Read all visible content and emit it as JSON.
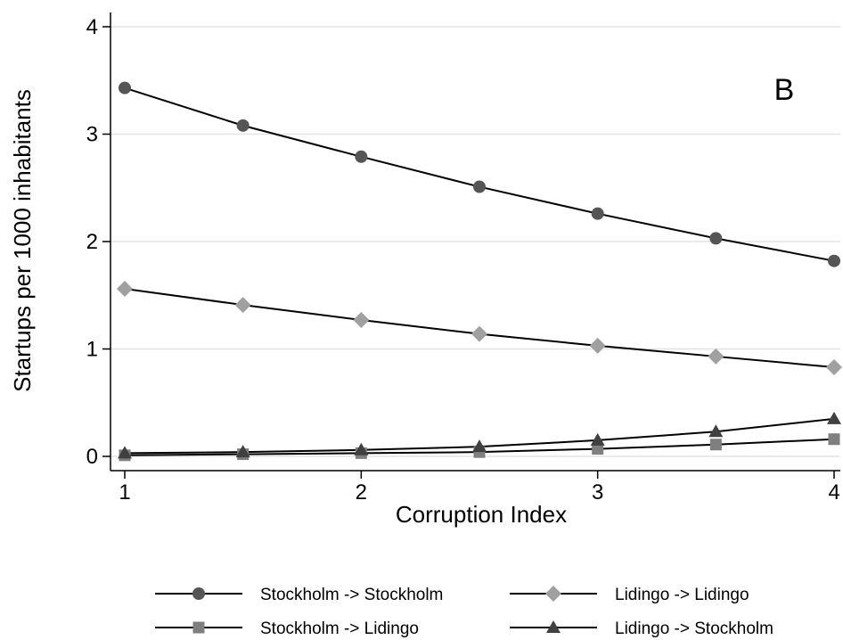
{
  "chart_data": {
    "type": "line",
    "annotation": "B",
    "xlabel": "Corruption Index",
    "ylabel": "Startups per 1000 inhabitants",
    "xlim": [
      1,
      4
    ],
    "ylim": [
      0,
      4
    ],
    "xticks": [
      "1",
      "2",
      "3",
      "4"
    ],
    "yticks": [
      "0",
      "1",
      "2",
      "3",
      "4"
    ],
    "grid": "horizontal",
    "legend_position": "bottom",
    "x": [
      1,
      1.5,
      2,
      2.5,
      3,
      3.5,
      4
    ],
    "series": [
      {
        "name": "Stockholm -> Stockholm",
        "marker": "circle",
        "color": "#555555",
        "values": [
          3.43,
          3.08,
          2.79,
          2.51,
          2.26,
          2.03,
          1.82
        ]
      },
      {
        "name": "Lidingo -> Lidingo",
        "marker": "diamond",
        "color": "#a0a0a0",
        "values": [
          1.56,
          1.41,
          1.27,
          1.14,
          1.03,
          0.93,
          0.83
        ]
      },
      {
        "name": "Stockholm -> Lidingo",
        "marker": "square",
        "color": "#7f7f7f",
        "values": [
          0.01,
          0.02,
          0.03,
          0.04,
          0.07,
          0.11,
          0.16
        ]
      },
      {
        "name": "Lidingo -> Stockholm",
        "marker": "triangle",
        "color": "#404040",
        "values": [
          0.03,
          0.04,
          0.06,
          0.09,
          0.15,
          0.23,
          0.35
        ]
      }
    ]
  }
}
